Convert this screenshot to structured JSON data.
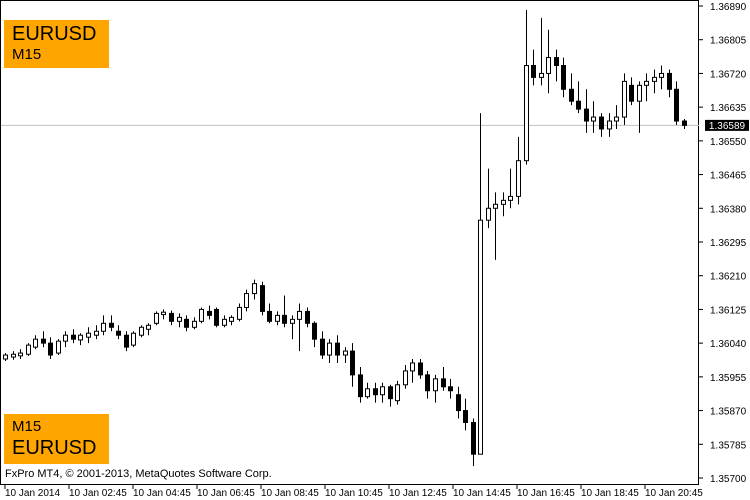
{
  "chart_data": {
    "type": "candlestick",
    "symbol": "EURUSD",
    "timeframe": "M15",
    "current_price": "1.36589",
    "ylim": [
      1.357,
      1.3689
    ],
    "y_ticks": [
      "1.36890",
      "1.36805",
      "1.36720",
      "1.36635",
      "1.36550",
      "1.36465",
      "1.36380",
      "1.36295",
      "1.36210",
      "1.36125",
      "1.36040",
      "1.35955",
      "1.35870",
      "1.35785",
      "1.35700"
    ],
    "x_ticks": [
      "10 Jan 2014",
      "10 Jan 02:45",
      "10 Jan 04:45",
      "10 Jan 06:45",
      "10 Jan 08:45",
      "10 Jan 10:45",
      "10 Jan 12:45",
      "10 Jan 14:45",
      "10 Jan 16:45",
      "10 Jan 18:45",
      "10 Jan 20:45"
    ],
    "candles": [
      [
        1.36,
        1.36015,
        1.35995,
        1.3601
      ],
      [
        1.36005,
        1.3602,
        1.35998,
        1.36012
      ],
      [
        1.36008,
        1.36025,
        1.36,
        1.36015
      ],
      [
        1.36012,
        1.3604,
        1.36008,
        1.36035
      ],
      [
        1.3603,
        1.3606,
        1.36025,
        1.3605
      ],
      [
        1.3605,
        1.3607,
        1.3603,
        1.3604
      ],
      [
        1.3604,
        1.36055,
        1.36,
        1.3601
      ],
      [
        1.36015,
        1.3605,
        1.3601,
        1.36045
      ],
      [
        1.36045,
        1.3607,
        1.3603,
        1.3606
      ],
      [
        1.3606,
        1.36075,
        1.3604,
        1.3605
      ],
      [
        1.36048,
        1.36065,
        1.36035,
        1.3606
      ],
      [
        1.36055,
        1.3608,
        1.3604,
        1.36065
      ],
      [
        1.3606,
        1.36085,
        1.3605,
        1.3607
      ],
      [
        1.3607,
        1.3611,
        1.3606,
        1.3609
      ],
      [
        1.3609,
        1.3611,
        1.3607,
        1.3608
      ],
      [
        1.3607,
        1.36085,
        1.3605,
        1.3606
      ],
      [
        1.3606,
        1.3607,
        1.3602,
        1.3603
      ],
      [
        1.36035,
        1.3607,
        1.3603,
        1.36065
      ],
      [
        1.3606,
        1.36085,
        1.36055,
        1.3608
      ],
      [
        1.36075,
        1.3609,
        1.3606,
        1.36085
      ],
      [
        1.3609,
        1.3612,
        1.36085,
        1.36115
      ],
      [
        1.36112,
        1.36125,
        1.361,
        1.36118
      ],
      [
        1.36115,
        1.36122,
        1.36085,
        1.36095
      ],
      [
        1.36095,
        1.36115,
        1.3608,
        1.36105
      ],
      [
        1.361,
        1.3611,
        1.3607,
        1.3608
      ],
      [
        1.3608,
        1.36105,
        1.36075,
        1.36095
      ],
      [
        1.36095,
        1.3613,
        1.3609,
        1.36125
      ],
      [
        1.3612,
        1.36135,
        1.361,
        1.3611
      ],
      [
        1.36125,
        1.3613,
        1.3608,
        1.36085
      ],
      [
        1.36085,
        1.3611,
        1.3608,
        1.361
      ],
      [
        1.36095,
        1.3611,
        1.36085,
        1.36105
      ],
      [
        1.361,
        1.3614,
        1.36095,
        1.3613
      ],
      [
        1.3613,
        1.36175,
        1.3612,
        1.36165
      ],
      [
        1.36165,
        1.362,
        1.3615,
        1.3619
      ],
      [
        1.36185,
        1.36195,
        1.3611,
        1.3612
      ],
      [
        1.3612,
        1.3614,
        1.3609,
        1.36095
      ],
      [
        1.36095,
        1.3612,
        1.36085,
        1.3611
      ],
      [
        1.3611,
        1.3616,
        1.3608,
        1.3609
      ],
      [
        1.3609,
        1.3611,
        1.3605,
        1.361
      ],
      [
        1.361,
        1.3614,
        1.3602,
        1.3612
      ],
      [
        1.3612,
        1.3613,
        1.3608,
        1.3609
      ],
      [
        1.3609,
        1.36095,
        1.3603,
        1.3605
      ],
      [
        1.3605,
        1.3607,
        1.36,
        1.3601
      ],
      [
        1.3601,
        1.3605,
        1.3599,
        1.3604
      ],
      [
        1.3604,
        1.3606,
        1.3599,
        1.3601
      ],
      [
        1.3601,
        1.3603,
        1.3599,
        1.3602
      ],
      [
        1.3602,
        1.3604,
        1.3593,
        1.3596
      ],
      [
        1.3596,
        1.3598,
        1.3589,
        1.35905
      ],
      [
        1.35905,
        1.3594,
        1.359,
        1.35925
      ],
      [
        1.35925,
        1.3594,
        1.3589,
        1.3591
      ],
      [
        1.3591,
        1.3594,
        1.3589,
        1.3593
      ],
      [
        1.3593,
        1.35935,
        1.3588,
        1.359
      ],
      [
        1.35895,
        1.35945,
        1.35885,
        1.35935
      ],
      [
        1.35935,
        1.35985,
        1.35925,
        1.3597
      ],
      [
        1.3597,
        1.36,
        1.3594,
        1.3599
      ],
      [
        1.3599,
        1.36,
        1.3595,
        1.3596
      ],
      [
        1.3596,
        1.3597,
        1.359,
        1.3592
      ],
      [
        1.3592,
        1.3596,
        1.3589,
        1.3595
      ],
      [
        1.3595,
        1.3598,
        1.3592,
        1.3593
      ],
      [
        1.3593,
        1.3595,
        1.359,
        1.3592
      ],
      [
        1.3591,
        1.3593,
        1.3585,
        1.3587
      ],
      [
        1.3587,
        1.359,
        1.3582,
        1.3584
      ],
      [
        1.3584,
        1.3585,
        1.3573,
        1.3576
      ],
      [
        1.3576,
        1.3662,
        1.3576,
        1.3635
      ],
      [
        1.3635,
        1.3648,
        1.3633,
        1.3638
      ],
      [
        1.3638,
        1.3642,
        1.3625,
        1.3639
      ],
      [
        1.3639,
        1.3642,
        1.3636,
        1.364
      ],
      [
        1.364,
        1.3648,
        1.3638,
        1.3641
      ],
      [
        1.3641,
        1.3656,
        1.3639,
        1.365
      ],
      [
        1.365,
        1.3688,
        1.3649,
        1.3674
      ],
      [
        1.3674,
        1.3678,
        1.3669,
        1.3671
      ],
      [
        1.3671,
        1.3686,
        1.3669,
        1.3672
      ],
      [
        1.3672,
        1.3683,
        1.3667,
        1.3676
      ],
      [
        1.3676,
        1.3678,
        1.367,
        1.3674
      ],
      [
        1.3674,
        1.3676,
        1.3666,
        1.3668
      ],
      [
        1.3668,
        1.3672,
        1.3664,
        1.3665
      ],
      [
        1.3665,
        1.367,
        1.3662,
        1.3663
      ],
      [
        1.3663,
        1.3668,
        1.3657,
        1.366
      ],
      [
        1.366,
        1.3665,
        1.3657,
        1.3661
      ],
      [
        1.3661,
        1.3662,
        1.3656,
        1.3658
      ],
      [
        1.3658,
        1.3662,
        1.3656,
        1.366
      ],
      [
        1.366,
        1.3664,
        1.3658,
        1.3661
      ],
      [
        1.3661,
        1.3672,
        1.3659,
        1.367
      ],
      [
        1.3669,
        1.3671,
        1.3664,
        1.3665
      ],
      [
        1.3665,
        1.367,
        1.3657,
        1.3669
      ],
      [
        1.3669,
        1.3672,
        1.3665,
        1.367
      ],
      [
        1.367,
        1.3673,
        1.3667,
        1.3671
      ],
      [
        1.3671,
        1.3674,
        1.3668,
        1.3672
      ],
      [
        1.3672,
        1.3673,
        1.3666,
        1.3668
      ],
      [
        1.3668,
        1.367,
        1.3659,
        1.366
      ],
      [
        1.366,
        1.36605,
        1.3658,
        1.36589
      ]
    ]
  },
  "overlay": {
    "top_symbol": "EURUSD",
    "top_timeframe": "M15",
    "bottom_timeframe": "M15",
    "bottom_symbol": "EURUSD",
    "copyright": "FxPro MT4, © 2001-2013, MetaQuotes Software Corp."
  },
  "colors": {
    "badge": "#ffa500",
    "candle": "#000000",
    "bullish_body": "#ffffff",
    "bearish_body": "#000000",
    "price_line": "#c0c0c0",
    "price_tag_bg": "#000000",
    "price_tag_text": "#ffffff"
  }
}
